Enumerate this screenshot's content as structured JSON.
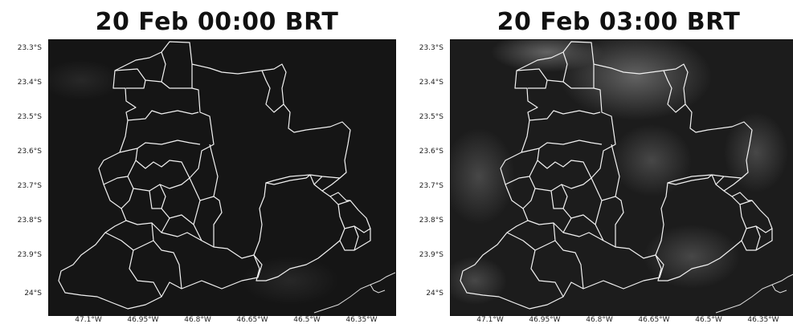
{
  "panels": [
    {
      "title": "20 Feb 00:00 BRT",
      "lat_labels": [
        "23.3°S",
        "23.4°S",
        "23.5°S",
        "23.6°S",
        "23.7°S",
        "23.8°S",
        "23.9°S",
        "24°S"
      ],
      "lon_labels": [
        "47.1°W",
        "46.95°W",
        "46.8°W",
        "46.65°W",
        "46.5°W",
        "46.35°W"
      ],
      "background_color": "#151515",
      "cloud_intensity": 0.05
    },
    {
      "title": "20 Feb 03:00 BRT",
      "lat_labels": [
        "23.3°S",
        "23.4°S",
        "23.5°S",
        "23.6°S",
        "23.7°S",
        "23.8°S",
        "23.9°S",
        "24°S"
      ],
      "lon_labels": [
        "47.1°W",
        "46.95°W",
        "46.8°W",
        "46.65°W",
        "46.5°W",
        "46.35°W"
      ],
      "background_color": "#1c1c1c",
      "cloud_intensity": 0.35
    }
  ],
  "colors": {
    "boundary": "#f2f2f2",
    "coastline": "#e0e0e0"
  }
}
